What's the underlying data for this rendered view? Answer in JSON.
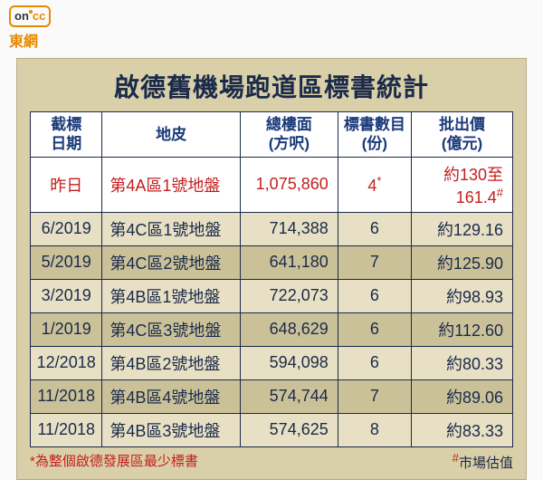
{
  "logo": {
    "on": "on",
    "cc": "cc",
    "brand": "東網"
  },
  "title": "啟德舊機場跑道區標書統計",
  "headers": {
    "date": "截標\n日期",
    "lot": "地皮",
    "area": "總樓面\n(方呎)",
    "bids": "標書數目\n(份)",
    "price": "批出價\n(億元)"
  },
  "rows": [
    {
      "date": "昨日",
      "lot": "第4A區1號地盤",
      "area": "1,075,860",
      "bids": "4",
      "bids_mark": "*",
      "price": "約130至\n161.4",
      "price_mark": "#",
      "highlight": true
    },
    {
      "date": "6/2019",
      "lot": "第4C區1號地盤",
      "area": "714,388",
      "bids": "6",
      "price": "約129.16"
    },
    {
      "date": "5/2019",
      "lot": "第4C區2號地盤",
      "area": "641,180",
      "bids": "7",
      "price": "約125.90"
    },
    {
      "date": "3/2019",
      "lot": "第4B區1號地盤",
      "area": "722,073",
      "bids": "6",
      "price": "約98.93"
    },
    {
      "date": "1/2019",
      "lot": "第4C區3號地盤",
      "area": "648,629",
      "bids": "6",
      "price": "約112.60"
    },
    {
      "date": "12/2018",
      "lot": "第4B區2號地盤",
      "area": "594,098",
      "bids": "6",
      "price": "約80.33"
    },
    {
      "date": "11/2018",
      "lot": "第4B區4號地盤",
      "area": "574,744",
      "bids": "7",
      "price": "約89.06"
    },
    {
      "date": "11/2018",
      "lot": "第4B區3號地盤",
      "area": "574,625",
      "bids": "8",
      "price": "約83.33"
    }
  ],
  "footnote_left_mark": "*",
  "footnote_left": "為整個啟德發展區最少標書",
  "footnote_right_mark": "#",
  "footnote_right": "市場估值",
  "colors": {
    "panel_bg": "#d9cfa8",
    "header_text": "#1a3a7a",
    "body_text": "#1a2a4a",
    "highlight_text": "#c41e1e",
    "row_even": "#e8e0c4",
    "row_odd": "#cbc199",
    "border": "#1a2a4a",
    "logo_orange": "#e68a00"
  }
}
